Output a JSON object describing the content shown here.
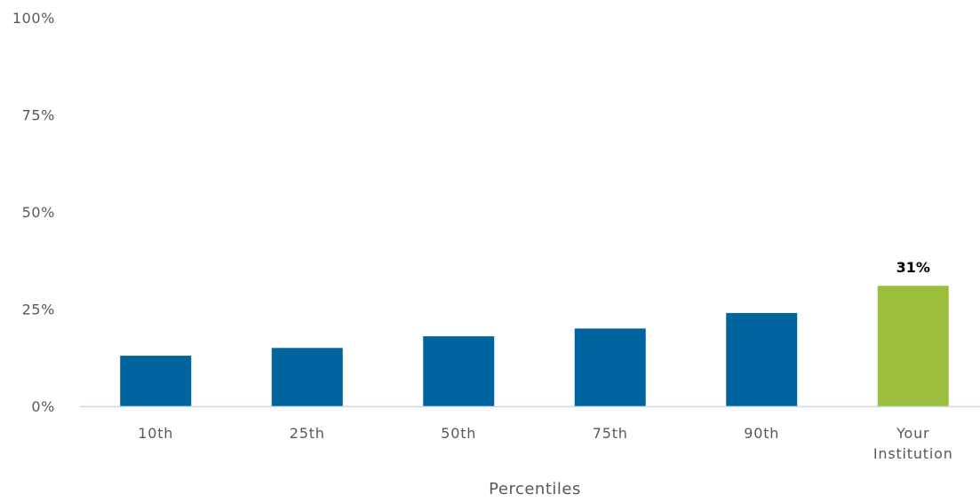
{
  "chart_data": {
    "type": "bar",
    "categories": [
      "10th",
      "25th",
      "50th",
      "75th",
      "90th",
      "Your\nInstitution"
    ],
    "values": [
      13,
      15,
      18,
      20,
      24,
      31
    ],
    "data_labels": [
      "",
      "",
      "",
      "",
      "",
      "31%"
    ],
    "yticks": [
      "0%",
      "25%",
      "50%",
      "75%",
      "100%"
    ],
    "ytick_values": [
      0,
      25,
      50,
      75,
      100
    ],
    "xlabel": "Percentiles",
    "ylabel": "",
    "ylim": [
      0,
      100
    ],
    "grid": false,
    "legend": "none"
  },
  "colors": {
    "bar_default": "#00649f",
    "bar_highlight": "#9bbf3d",
    "axis_line": "#c9d9ea",
    "text": "#595959"
  }
}
